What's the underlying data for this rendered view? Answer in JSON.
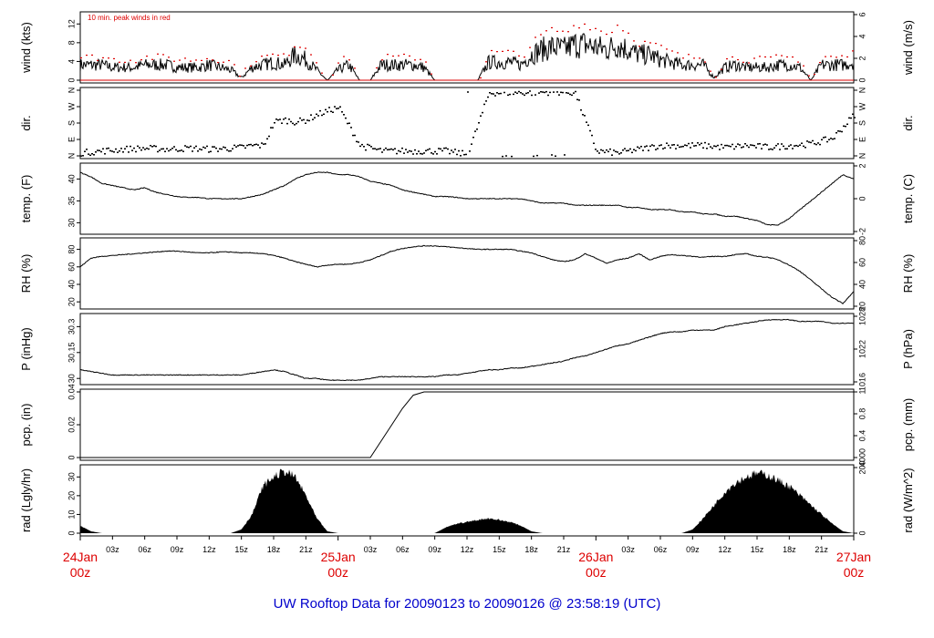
{
  "footer_text": "UW Rooftop Data for 20090123  to  20090126 @ 23:58:19  (UTC)",
  "colors": {
    "peak": "#dd0000",
    "day": "#dd0000",
    "footer": "#0000cc",
    "ink": "#000000"
  },
  "chart_data": [
    {
      "type": "line",
      "panel": "wind",
      "ylabel": "wind (kts)",
      "ylabel_right": "wind (m/s)",
      "annotation": "10 min. peak winds in red",
      "ylim": [
        0,
        14
      ],
      "yticks": [
        0,
        4,
        8,
        12
      ],
      "yticks_right": [
        "0",
        "2",
        "4",
        "6"
      ],
      "x_hours": [
        0,
        1,
        2,
        3,
        4,
        5,
        6,
        7,
        8,
        9,
        10,
        11,
        12,
        13,
        14,
        15,
        16,
        17,
        18,
        19,
        20,
        21,
        22,
        23,
        24,
        25,
        26,
        27,
        28,
        29,
        30,
        31,
        32,
        33,
        34,
        35,
        36,
        37,
        38,
        39,
        40,
        41,
        42,
        43,
        44,
        45,
        46,
        47,
        48,
        49,
        50,
        51,
        52,
        53,
        54,
        55,
        56,
        57,
        58,
        59,
        60,
        61,
        62,
        63,
        64,
        65,
        66,
        67,
        68,
        69,
        70,
        71,
        72
      ],
      "series": [
        {
          "name": "wind",
          "values": [
            3,
            3,
            3,
            2.5,
            2.5,
            2.5,
            3,
            3,
            3,
            2.5,
            2.5,
            2.5,
            3,
            2.5,
            2,
            0.5,
            2.5,
            3,
            3.5,
            3,
            5,
            4,
            2,
            0,
            2,
            3,
            0,
            0,
            3,
            3,
            3,
            3,
            2.5,
            0,
            0,
            0,
            0,
            0,
            3.5,
            3.5,
            3.5,
            3,
            5,
            6,
            6.5,
            6,
            7,
            7,
            6.5,
            6,
            7,
            6,
            5,
            5,
            4,
            3.5,
            3,
            3,
            3,
            0.5,
            2.5,
            3,
            2.5,
            2.5,
            2.5,
            3,
            3,
            2.5,
            0,
            3,
            3,
            3,
            3.5
          ]
        },
        {
          "name": "10 min. peak winds",
          "values": [
            5,
            5,
            5,
            4.5,
            4.5,
            4.5,
            5,
            5,
            5,
            4.5,
            4.5,
            4.5,
            5,
            4.5,
            4,
            1,
            4.5,
            5,
            5.5,
            5,
            8,
            7,
            4,
            0,
            4,
            5,
            0,
            0,
            5,
            5,
            5,
            5,
            4.5,
            0,
            0,
            0,
            0,
            0,
            6,
            6,
            6,
            5,
            8,
            10,
            11,
            10,
            12,
            12,
            11,
            10,
            12,
            10,
            8,
            8,
            7,
            6,
            5,
            5,
            5,
            1,
            4.5,
            5,
            4.5,
            4.5,
            4.5,
            5,
            5,
            4.5,
            0,
            5,
            5,
            5,
            6
          ]
        }
      ]
    },
    {
      "type": "scatter",
      "panel": "dir",
      "ylabel": "dir.",
      "ylabel_right": "dir.",
      "yticks": [
        "N",
        "E",
        "S",
        "W",
        "N"
      ],
      "ylim": [
        0,
        360
      ],
      "x_hours": [
        0,
        2,
        4,
        6,
        8,
        10,
        12,
        14,
        15,
        16,
        17,
        18,
        19,
        20,
        21,
        22,
        23,
        24,
        26,
        28,
        30,
        32,
        34,
        36,
        38,
        40,
        42,
        44,
        46,
        48,
        50,
        52,
        54,
        56,
        58,
        60,
        62,
        64,
        66,
        68,
        70,
        72
      ],
      "values": [
        20,
        30,
        40,
        45,
        40,
        45,
        40,
        45,
        50,
        60,
        60,
        190,
        200,
        190,
        200,
        230,
        250,
        270,
        60,
        30,
        30,
        30,
        30,
        10,
        350,
        350,
        350,
        355,
        350,
        30,
        20,
        40,
        60,
        60,
        60,
        50,
        60,
        50,
        60,
        70,
        100,
        230
      ]
    },
    {
      "type": "line",
      "panel": "temp",
      "ylabel": "temp. (F)",
      "ylabel_right": "temp. (C)",
      "ylim": [
        28,
        43
      ],
      "yticks": [
        30,
        35,
        40
      ],
      "yticks_right": [
        "-2",
        "0",
        "2"
      ],
      "x_hours": [
        0,
        1,
        2,
        3,
        4,
        5,
        6,
        7,
        8,
        9,
        10,
        11,
        12,
        13,
        14,
        15,
        16,
        17,
        18,
        19,
        20,
        21,
        22,
        23,
        24,
        25,
        26,
        27,
        28,
        29,
        30,
        31,
        32,
        33,
        34,
        35,
        36,
        37,
        38,
        39,
        40,
        41,
        42,
        43,
        44,
        45,
        46,
        47,
        48,
        49,
        50,
        51,
        52,
        53,
        54,
        55,
        56,
        57,
        58,
        59,
        60,
        61,
        62,
        63,
        64,
        65,
        66,
        67,
        68,
        69,
        70,
        71,
        72
      ],
      "values": [
        41.5,
        40.5,
        39,
        38.5,
        38,
        37.5,
        38,
        37,
        36.5,
        36,
        35.8,
        35.8,
        35.5,
        35.5,
        35.5,
        35.5,
        36,
        36.5,
        37.5,
        38.5,
        40,
        41,
        41.5,
        41.5,
        41,
        41,
        40.5,
        39.5,
        39,
        38.5,
        37.5,
        37,
        36.5,
        36,
        36,
        35.8,
        35.5,
        35.5,
        35.5,
        35.5,
        35.5,
        35.5,
        35,
        34.5,
        34.5,
        34.5,
        34,
        34,
        34,
        34,
        34,
        33.5,
        33.5,
        33,
        33,
        33,
        32.5,
        32.5,
        32,
        32,
        31.5,
        31.5,
        31,
        30.5,
        29.5,
        29.5,
        31,
        33,
        35,
        37,
        39,
        41,
        40
      ]
    },
    {
      "type": "line",
      "panel": "rh",
      "ylabel": "RH (%)",
      "ylabel_right": "RH (%)",
      "ylim": [
        15,
        90
      ],
      "yticks": [
        20,
        40,
        60,
        80
      ],
      "yticks_right": [
        "20",
        "40",
        "60",
        "80"
      ],
      "x_hours": [
        0,
        1,
        2,
        3,
        4,
        5,
        6,
        7,
        8,
        9,
        10,
        11,
        12,
        13,
        14,
        15,
        16,
        17,
        18,
        19,
        20,
        21,
        22,
        23,
        24,
        25,
        26,
        27,
        28,
        29,
        30,
        31,
        32,
        33,
        34,
        35,
        36,
        37,
        38,
        39,
        40,
        41,
        42,
        43,
        44,
        45,
        46,
        47,
        48,
        49,
        50,
        51,
        52,
        53,
        54,
        55,
        56,
        57,
        58,
        59,
        60,
        61,
        62,
        63,
        64,
        65,
        66,
        67,
        68,
        69,
        70,
        71,
        72
      ],
      "values": [
        60,
        70,
        72,
        73,
        74,
        75,
        76,
        77,
        78,
        78,
        77,
        76,
        76,
        77,
        77,
        76,
        76,
        75,
        73,
        70,
        66,
        63,
        60,
        62,
        63,
        63,
        65,
        68,
        73,
        78,
        81,
        83,
        84,
        84,
        83,
        82,
        81,
        80,
        80,
        80,
        80,
        78,
        76,
        72,
        68,
        66,
        68,
        75,
        70,
        64,
        68,
        70,
        75,
        68,
        72,
        74,
        73,
        72,
        71,
        72,
        72,
        74,
        75,
        72,
        71,
        68,
        62,
        55,
        45,
        35,
        25,
        18,
        32
      ]
    },
    {
      "type": "line",
      "panel": "pressure",
      "ylabel": "P (inHg)",
      "ylabel_right": "P (hPa)",
      "ylim": [
        29.98,
        30.36
      ],
      "yticks": [
        "30",
        "30.15",
        "30.3"
      ],
      "yticks_right": [
        "1016",
        "1022",
        "1028"
      ],
      "x_hours": [
        0,
        1,
        2,
        3,
        4,
        5,
        6,
        7,
        8,
        9,
        10,
        11,
        12,
        13,
        14,
        15,
        16,
        17,
        18,
        19,
        20,
        21,
        22,
        23,
        24,
        25,
        26,
        27,
        28,
        29,
        30,
        31,
        32,
        33,
        34,
        35,
        36,
        37,
        38,
        39,
        40,
        41,
        42,
        43,
        44,
        45,
        46,
        47,
        48,
        49,
        50,
        51,
        52,
        53,
        54,
        55,
        56,
        57,
        58,
        59,
        60,
        61,
        62,
        63,
        64,
        65,
        66,
        67,
        68,
        69,
        70,
        71,
        72
      ],
      "values": [
        30.05,
        30.04,
        30.03,
        30.02,
        30.02,
        30.02,
        30.02,
        30.02,
        30.02,
        30.02,
        30.02,
        30.02,
        30.02,
        30.02,
        30.02,
        30.02,
        30.03,
        30.04,
        30.05,
        30.04,
        30.02,
        30.0,
        30.0,
        29.99,
        29.99,
        29.99,
        29.99,
        30.0,
        30.01,
        30.01,
        30.01,
        30.01,
        30.01,
        30.01,
        30.02,
        30.02,
        30.03,
        30.04,
        30.05,
        30.05,
        30.06,
        30.06,
        30.07,
        30.08,
        30.09,
        30.1,
        30.12,
        30.13,
        30.15,
        30.17,
        30.19,
        30.2,
        30.22,
        30.24,
        30.26,
        30.27,
        30.27,
        30.28,
        30.28,
        30.28,
        30.3,
        30.31,
        30.32,
        30.33,
        30.34,
        30.34,
        30.34,
        30.33,
        30.33,
        30.33,
        30.32,
        30.32,
        30.32
      ]
    },
    {
      "type": "area",
      "panel": "precip",
      "ylabel": "pcp. (in)",
      "ylabel_right": "pcp. (mm)",
      "ylim": [
        0,
        0.04
      ],
      "yticks": [
        "0",
        "0.02",
        "0.04"
      ],
      "yticks_right": [
        "4000",
        "0.4",
        "0.8",
        "1"
      ],
      "x_hours": [
        0,
        27,
        28,
        29,
        30,
        31,
        32,
        72
      ],
      "values": [
        0,
        0,
        0.01,
        0.02,
        0.03,
        0.038,
        0.04,
        0.04
      ]
    },
    {
      "type": "area",
      "panel": "radiation",
      "ylabel": "rad (Lgly/hr)",
      "ylabel_right": "rad (W/m^2)",
      "ylim": [
        0,
        35
      ],
      "yticks": [
        0,
        10,
        20,
        30
      ],
      "yticks_right": [
        "0",
        "200"
      ],
      "x_hours": [
        0,
        1,
        2,
        14,
        15,
        16,
        17,
        18,
        19,
        20,
        21,
        22,
        23,
        24,
        33,
        34,
        35,
        36,
        37,
        38,
        39,
        40,
        41,
        42,
        43,
        44,
        56,
        57,
        58,
        59,
        60,
        61,
        62,
        63,
        64,
        65,
        66,
        67,
        68,
        69,
        70,
        71,
        72
      ],
      "values": [
        4,
        1,
        0,
        0,
        2,
        10,
        25,
        30,
        33,
        30,
        20,
        8,
        1,
        0,
        0,
        3,
        5,
        6,
        7,
        8,
        7,
        6,
        4,
        1,
        0,
        0,
        0,
        2,
        8,
        15,
        22,
        27,
        30,
        32,
        31,
        28,
        25,
        20,
        15,
        10,
        5,
        1,
        0
      ]
    }
  ],
  "x_axis": {
    "hour_labels": [
      "03z",
      "06z",
      "09z",
      "12z",
      "15z",
      "18z",
      "21z",
      "03z",
      "06z",
      "09z",
      "12z",
      "15z",
      "18z",
      "21z",
      "03z",
      "06z",
      "09z",
      "12z",
      "15z",
      "18z",
      "21z"
    ],
    "hour_positions": [
      3,
      6,
      9,
      12,
      15,
      18,
      21,
      27,
      30,
      33,
      36,
      39,
      42,
      45,
      51,
      54,
      57,
      60,
      63,
      66,
      69
    ],
    "day_labels": [
      {
        "top": "24Jan",
        "bottom": "00z",
        "hour": 0
      },
      {
        "top": "25Jan",
        "bottom": "00z",
        "hour": 24
      },
      {
        "top": "26Jan",
        "bottom": "00z",
        "hour": 48
      },
      {
        "top": "27Jan",
        "bottom": "00z",
        "hour": 72
      }
    ]
  }
}
